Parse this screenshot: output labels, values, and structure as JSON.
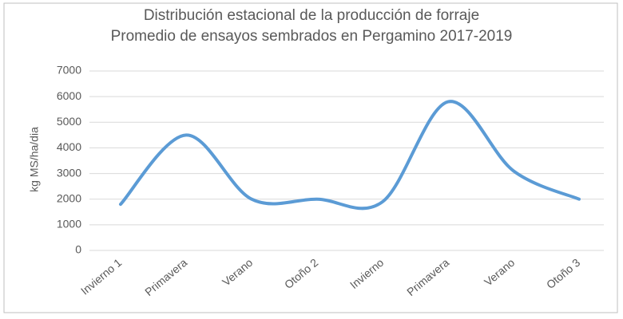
{
  "chart_data": {
    "type": "line",
    "title": "Distribución estacional de la producción de forraje",
    "subtitle": "Promedio de ensayos sembrados en Pergamino 2017-2019",
    "y_label": "kg MS/ha/dia",
    "categories": [
      "Invierno 1",
      "Primavera",
      "Verano",
      "Otoño 2",
      "Invierno",
      "Primavera",
      "Verano",
      "Otoño 3"
    ],
    "values": [
      1800,
      4500,
      2000,
      2000,
      1900,
      5800,
      3100,
      2000
    ],
    "color": "#5b9bd5",
    "smooth": true,
    "ylim": [
      0,
      7000
    ],
    "yticks": [
      0,
      1000,
      2000,
      3000,
      4000,
      5000,
      6000,
      7000
    ],
    "grid": true
  }
}
